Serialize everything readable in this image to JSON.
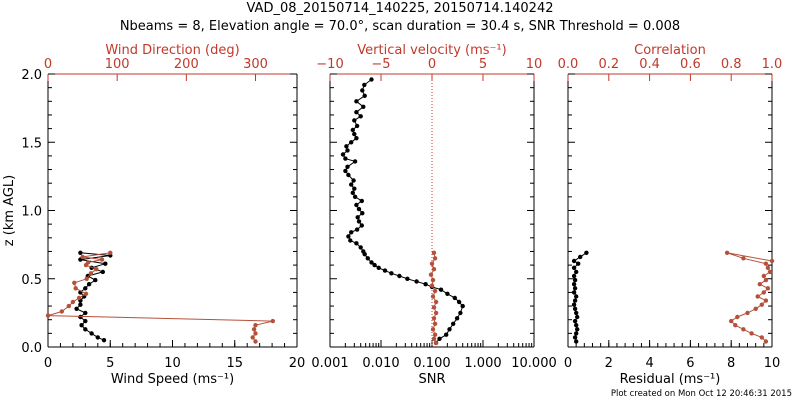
{
  "figure": {
    "title": "VAD_08_20150714_140225, 20150714.140242",
    "subtitle": "Nbeams = 8, Elevation angle = 70.0°, scan duration = 30.4 s, SNR Threshold = 0.008",
    "credit": "Plot created on Mon Oct 12 20:46:31 2015"
  },
  "colors": {
    "axis": "#000000",
    "top_axis": "#c0392b",
    "series_black": "#000000",
    "series_red": "#b5513a"
  },
  "chart_data": [
    {
      "type": "line",
      "panel": "wind",
      "ylabel": "z (km AGL)",
      "ylim": [
        0,
        2.0
      ],
      "yticks": [
        0.0,
        0.5,
        1.0,
        1.5,
        2.0
      ],
      "yticklabels": [
        "0.0",
        "0.5",
        "1.0",
        "1.5",
        "2.0"
      ],
      "xlabel": "Wind Speed (ms⁻¹)",
      "xlim": [
        0,
        20
      ],
      "xticks": [
        0,
        5,
        10,
        15,
        20
      ],
      "xticklabels": [
        "0",
        "5",
        "10",
        "15",
        "20"
      ],
      "top_label": "Wind Direction (deg)",
      "top_lim": [
        0,
        360
      ],
      "top_ticks": [
        0,
        100,
        200,
        300
      ],
      "top_ticklabels": [
        "0",
        "100",
        "200",
        "300"
      ],
      "series": [
        {
          "axis": "bottom",
          "color": "#000000",
          "points": [
            [
              4.5,
              0.05
            ],
            [
              4.0,
              0.07
            ],
            [
              3.5,
              0.1
            ],
            [
              3.0,
              0.13
            ],
            [
              2.7,
              0.16
            ],
            [
              3.0,
              0.19
            ],
            [
              2.6,
              0.22
            ],
            [
              3.0,
              0.25
            ],
            [
              2.3,
              0.28
            ],
            [
              2.6,
              0.31
            ],
            [
              2.6,
              0.34
            ],
            [
              2.9,
              0.37
            ],
            [
              2.6,
              0.4
            ],
            [
              3.0,
              0.43
            ],
            [
              3.3,
              0.46
            ],
            [
              3.8,
              0.49
            ],
            [
              3.2,
              0.52
            ],
            [
              4.4,
              0.55
            ],
            [
              3.5,
              0.58
            ],
            [
              4.6,
              0.61
            ],
            [
              2.6,
              0.64
            ],
            [
              5.0,
              0.67
            ],
            [
              2.6,
              0.69
            ]
          ]
        },
        {
          "axis": "top",
          "color": "#b5513a",
          "points": [
            [
              300,
              0.04
            ],
            [
              296,
              0.07
            ],
            [
              300,
              0.1
            ],
            [
              298,
              0.13
            ],
            [
              300,
              0.16
            ],
            [
              325,
              0.19
            ],
            [
              0,
              0.23
            ],
            [
              20,
              0.26
            ],
            [
              30,
              0.3
            ],
            [
              36,
              0.33
            ],
            [
              45,
              0.36
            ],
            [
              55,
              0.39
            ],
            [
              40,
              0.43
            ],
            [
              38,
              0.47
            ],
            [
              56,
              0.5
            ],
            [
              62,
              0.54
            ],
            [
              70,
              0.57
            ],
            [
              55,
              0.6
            ],
            [
              58,
              0.62
            ],
            [
              78,
              0.64
            ],
            [
              50,
              0.66
            ],
            [
              90,
              0.69
            ]
          ]
        }
      ]
    },
    {
      "type": "line",
      "panel": "snr",
      "ylim": [
        0,
        2.0
      ],
      "xlabel": "SNR",
      "xscale": "log",
      "xlim": [
        0.001,
        10
      ],
      "xticks": [
        0.001,
        0.01,
        0.1,
        1,
        10
      ],
      "xticklabels": [
        "0.001",
        "0.010",
        "0.100",
        "1.000",
        "10.000"
      ],
      "top_label": "Vertical velocity (ms⁻¹)",
      "top_lim": [
        -10,
        10
      ],
      "top_ticks": [
        -10,
        -5,
        0,
        5,
        10
      ],
      "top_ticklabels": [
        "−10",
        "−5",
        "0",
        "5",
        "10"
      ],
      "reference_line": {
        "axis": "top",
        "value": 0,
        "style": "dotted"
      },
      "series": [
        {
          "axis": "bottom",
          "color": "#000000",
          "points": [
            [
              0.12,
              0.03
            ],
            [
              0.14,
              0.06
            ],
            [
              0.19,
              0.09
            ],
            [
              0.22,
              0.13
            ],
            [
              0.26,
              0.17
            ],
            [
              0.31,
              0.21
            ],
            [
              0.36,
              0.25
            ],
            [
              0.4,
              0.3
            ],
            [
              0.34,
              0.33
            ],
            [
              0.28,
              0.36
            ],
            [
              0.2,
              0.39
            ],
            [
              0.15,
              0.42
            ],
            [
              0.1,
              0.44
            ],
            [
              0.075,
              0.46
            ],
            [
              0.05,
              0.48
            ],
            [
              0.033,
              0.5
            ],
            [
              0.023,
              0.52
            ],
            [
              0.016,
              0.54
            ],
            [
              0.012,
              0.56
            ],
            [
              0.009,
              0.58
            ],
            [
              0.0075,
              0.6
            ],
            [
              0.0065,
              0.62
            ],
            [
              0.0055,
              0.65
            ],
            [
              0.0048,
              0.68
            ],
            [
              0.0045,
              0.7
            ],
            [
              0.004,
              0.73
            ],
            [
              0.0033,
              0.76
            ],
            [
              0.0025,
              0.78
            ],
            [
              0.0023,
              0.81
            ],
            [
              0.0026,
              0.84
            ],
            [
              0.0034,
              0.86
            ],
            [
              0.0042,
              0.89
            ],
            [
              0.0037,
              0.92
            ],
            [
              0.0035,
              0.95
            ],
            [
              0.0043,
              0.98
            ],
            [
              0.0037,
              1.01
            ],
            [
              0.0033,
              1.04
            ],
            [
              0.0042,
              1.07
            ],
            [
              0.0031,
              1.1
            ],
            [
              0.0028,
              1.13
            ],
            [
              0.003,
              1.16
            ],
            [
              0.0026,
              1.19
            ],
            [
              0.0029,
              1.22
            ],
            [
              0.0023,
              1.26
            ],
            [
              0.002,
              1.29
            ],
            [
              0.0022,
              1.32
            ],
            [
              0.0031,
              1.36
            ],
            [
              0.002,
              1.38
            ],
            [
              0.0018,
              1.41
            ],
            [
              0.0022,
              1.44
            ],
            [
              0.0021,
              1.47
            ],
            [
              0.0026,
              1.5
            ],
            [
              0.0033,
              1.53
            ],
            [
              0.003,
              1.56
            ],
            [
              0.0028,
              1.59
            ],
            [
              0.0034,
              1.62
            ],
            [
              0.003,
              1.66
            ],
            [
              0.004,
              1.69
            ],
            [
              0.0033,
              1.72
            ],
            [
              0.0045,
              1.76
            ],
            [
              0.0033,
              1.8
            ],
            [
              0.0048,
              1.84
            ],
            [
              0.0043,
              1.88
            ],
            [
              0.0047,
              1.92
            ],
            [
              0.0065,
              1.96
            ]
          ]
        },
        {
          "axis": "top",
          "color": "#b5513a",
          "points": [
            [
              0.4,
              0.03
            ],
            [
              0.2,
              0.06
            ],
            [
              0.3,
              0.09
            ],
            [
              0.1,
              0.13
            ],
            [
              0.3,
              0.17
            ],
            [
              0.2,
              0.21
            ],
            [
              0.4,
              0.25
            ],
            [
              0.2,
              0.29
            ],
            [
              0.4,
              0.33
            ],
            [
              0.1,
              0.37
            ],
            [
              0.3,
              0.41
            ],
            [
              0.0,
              0.45
            ],
            [
              0.1,
              0.49
            ],
            [
              -0.1,
              0.53
            ],
            [
              0.2,
              0.57
            ],
            [
              0.0,
              0.61
            ],
            [
              0.3,
              0.65
            ],
            [
              0.2,
              0.69
            ]
          ]
        }
      ]
    },
    {
      "type": "line",
      "panel": "residual",
      "ylim": [
        0,
        2.0
      ],
      "xlabel": "Residual (ms⁻¹)",
      "xlim": [
        0,
        10
      ],
      "xticks": [
        0,
        2,
        4,
        6,
        8,
        10
      ],
      "xticklabels": [
        "0",
        "2",
        "4",
        "6",
        "8",
        "10"
      ],
      "top_label": "Correlation",
      "top_lim": [
        0,
        1.0
      ],
      "top_ticks": [
        0,
        0.2,
        0.4,
        0.6,
        0.8,
        1.0
      ],
      "top_ticklabels": [
        "0.0",
        "0.2",
        "0.4",
        "0.6",
        "0.8",
        "1.0"
      ],
      "series": [
        {
          "axis": "bottom",
          "color": "#000000",
          "points": [
            [
              0.4,
              0.04
            ],
            [
              0.35,
              0.07
            ],
            [
              0.4,
              0.1
            ],
            [
              0.45,
              0.13
            ],
            [
              0.4,
              0.16
            ],
            [
              0.35,
              0.19
            ],
            [
              0.45,
              0.22
            ],
            [
              0.4,
              0.25
            ],
            [
              0.35,
              0.28
            ],
            [
              0.3,
              0.31
            ],
            [
              0.35,
              0.34
            ],
            [
              0.4,
              0.37
            ],
            [
              0.3,
              0.4
            ],
            [
              0.35,
              0.43
            ],
            [
              0.3,
              0.46
            ],
            [
              0.35,
              0.49
            ],
            [
              0.3,
              0.52
            ],
            [
              0.4,
              0.55
            ],
            [
              0.3,
              0.58
            ],
            [
              0.5,
              0.61
            ],
            [
              0.3,
              0.63
            ],
            [
              0.6,
              0.66
            ],
            [
              0.9,
              0.69
            ]
          ]
        },
        {
          "axis": "top",
          "color": "#b5513a",
          "points": [
            [
              0.97,
              0.04
            ],
            [
              0.95,
              0.07
            ],
            [
              0.9,
              0.1
            ],
            [
              0.86,
              0.13
            ],
            [
              0.82,
              0.16
            ],
            [
              0.8,
              0.19
            ],
            [
              0.83,
              0.22
            ],
            [
              0.88,
              0.25
            ],
            [
              0.92,
              0.28
            ],
            [
              0.95,
              0.31
            ],
            [
              0.97,
              0.34
            ],
            [
              0.93,
              0.37
            ],
            [
              0.96,
              0.4
            ],
            [
              0.98,
              0.43
            ],
            [
              0.94,
              0.46
            ],
            [
              0.97,
              0.49
            ],
            [
              0.96,
              0.52
            ],
            [
              0.99,
              0.55
            ],
            [
              0.98,
              0.58
            ],
            [
              0.97,
              0.61
            ],
            [
              0.86,
              0.65
            ],
            [
              0.78,
              0.69
            ],
            [
              1.0,
              0.63
            ]
          ]
        }
      ]
    }
  ]
}
